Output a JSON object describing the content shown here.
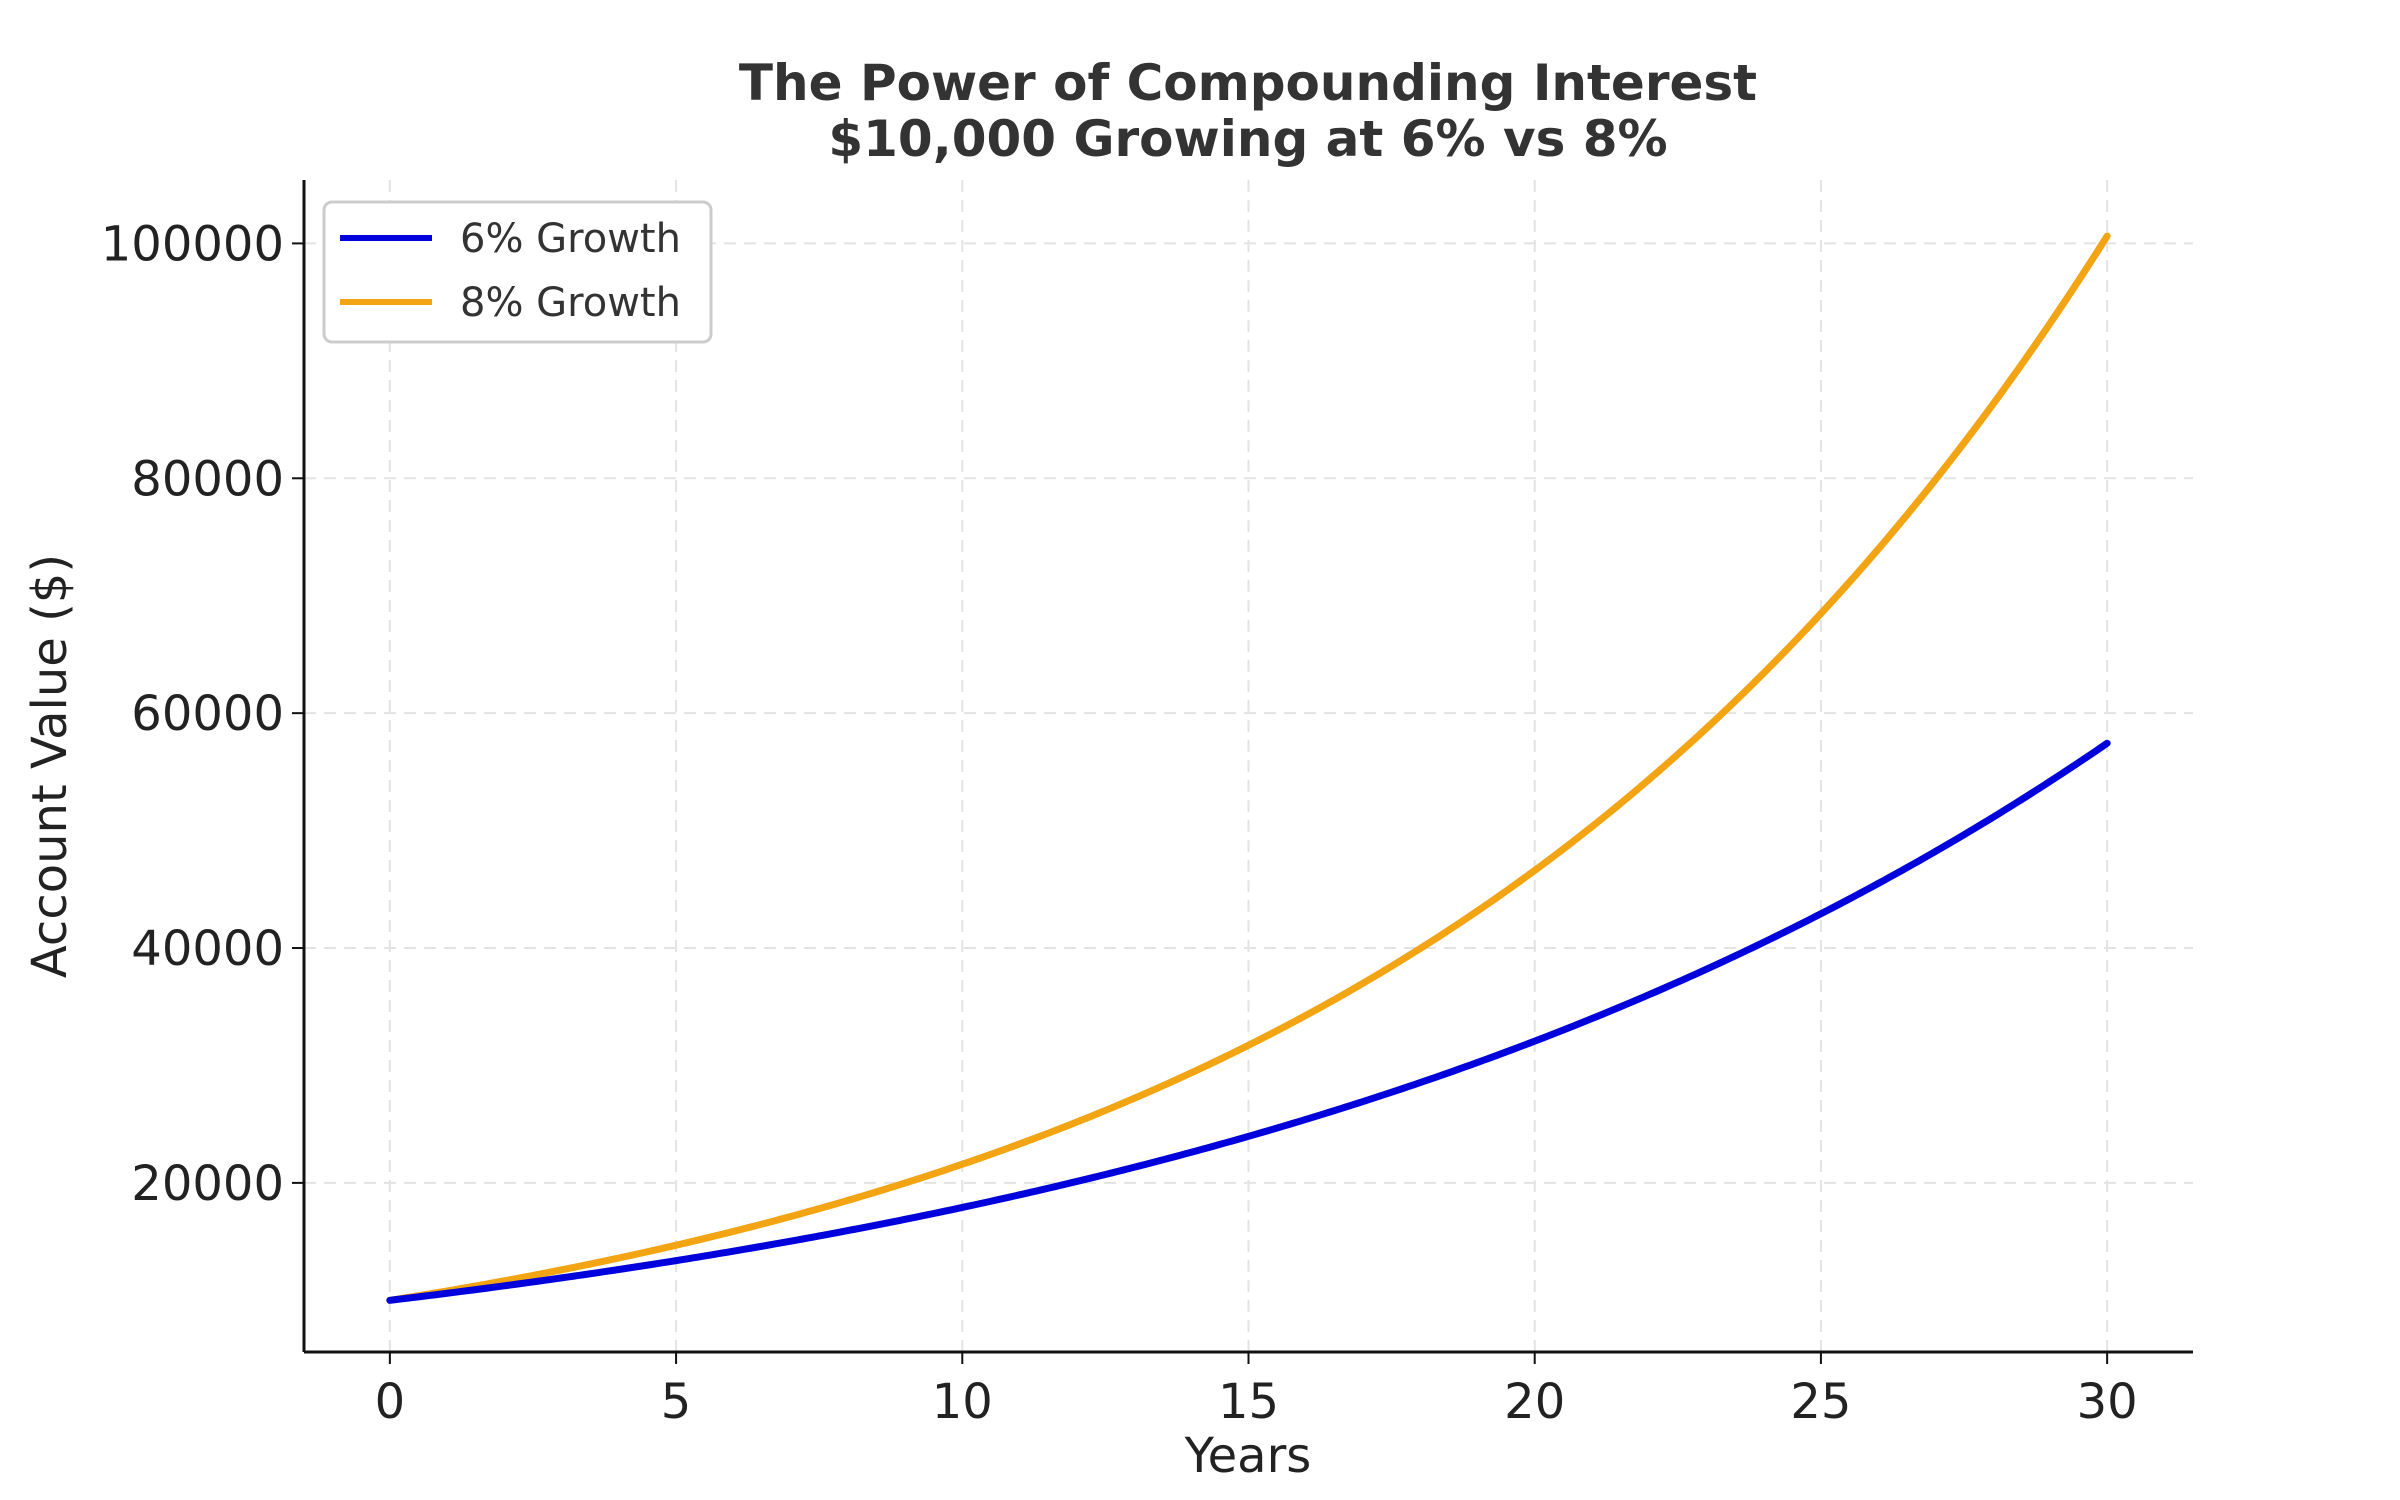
{
  "chart_data": {
    "type": "line",
    "title": "The Power of Compounding Interest",
    "subtitle": "$10,000 Growing at 6% vs 8%",
    "xlabel": "Years",
    "ylabel": "Account Value ($)",
    "xlim": [
      -1.5,
      31.5
    ],
    "ylim": [
      5600,
      105400
    ],
    "xticks": [
      0,
      5,
      10,
      15,
      20,
      25,
      30
    ],
    "yticks": [
      20000,
      40000,
      60000,
      80000,
      100000
    ],
    "grid": true,
    "legend_position": "top-left",
    "principal": 10000,
    "x_start": 0,
    "x_end": 30,
    "series": [
      {
        "name": "6% Growth",
        "rate": 0.06,
        "color": "#0000dd",
        "end_value": 57435
      },
      {
        "name": "8% Growth",
        "rate": 0.08,
        "color": "#f2a413",
        "end_value": 100627
      }
    ]
  }
}
